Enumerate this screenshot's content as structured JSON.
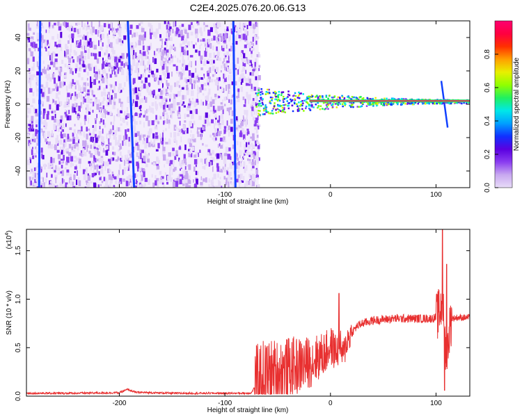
{
  "title": "C2E4.2025.076.20.06.G13",
  "chart_data": [
    {
      "type": "heatmap",
      "xlabel": "Height of straight line (km)",
      "ylabel": "Frequency (Hz)",
      "xlim": [
        -288,
        132
      ],
      "ylim": [
        -50,
        50
      ],
      "x_ticks": [
        -200,
        -100,
        0,
        100
      ],
      "x_tick_labels": [
        "-200",
        "-100",
        "0",
        "100"
      ],
      "y_ticks": [
        -40,
        -20,
        0,
        20,
        40
      ],
      "y_tick_labels": [
        "-40",
        "-20",
        "0",
        "20",
        "40"
      ],
      "colorbar": {
        "label": "Normalized spectral amplitude",
        "range": [
          0,
          1
        ],
        "ticks": [
          0,
          0.2,
          0.4,
          0.6,
          0.8
        ],
        "tick_labels": [
          "0.0",
          "0.2",
          "0.4",
          "0.6",
          "0.8"
        ],
        "colors": [
          "#e8dcf8",
          "#c8a8f0",
          "#8a3cf0",
          "#5a00e0",
          "#1030ff",
          "#00a0ff",
          "#00e8e8",
          "#20f060",
          "#90ff00",
          "#e8f000",
          "#ffa000",
          "#ff3000",
          "#ff0040",
          "#ff0070"
        ]
      },
      "features": {
        "noise_region_x": [
          -288,
          -68
        ],
        "signal_line_frequency": 2,
        "signal_start_x": -72,
        "streak_lines": [
          {
            "x_top": -192,
            "x_bottom": -186
          },
          {
            "x_top": -92,
            "x_bottom": -90
          },
          {
            "x_top": -275,
            "x_bottom": -276
          },
          {
            "x_top": 105,
            "x_bottom": 111
          }
        ]
      }
    },
    {
      "type": "line",
      "xlabel": "Height of straight line (km)",
      "ylabel": "SNR (10 * v/v)",
      "y_multiplier": "(x10",
      "y_multiplier_exp": "4",
      "xlim": [
        -288,
        132
      ],
      "ylim": [
        0,
        17200
      ],
      "x_ticks": [
        -200,
        -100,
        0,
        100
      ],
      "x_tick_labels": [
        "-200",
        "-100",
        "0",
        "100"
      ],
      "y_ticks": [
        0,
        5000,
        10000,
        15000
      ],
      "y_tick_labels": [
        "0.0",
        "0.5",
        "1.0",
        "1.5"
      ],
      "series": [
        {
          "color": "#e83030",
          "x": [
            -288,
            -250,
            -200,
            -192,
            -185,
            -150,
            -100,
            -80,
            -75,
            -72,
            -65,
            -55,
            -45,
            -35,
            -25,
            -18,
            -12,
            -5,
            0,
            5,
            10,
            12,
            15,
            20,
            25,
            30,
            40,
            50,
            60,
            70,
            80,
            90,
            95,
            100,
            103,
            106,
            108,
            110,
            112,
            115,
            120,
            125,
            132
          ],
          "y": [
            300,
            300,
            350,
            700,
            400,
            300,
            300,
            300,
            320,
            900,
            1800,
            2200,
            2600,
            3000,
            3300,
            3600,
            4000,
            4400,
            5200,
            4600,
            5000,
            4000,
            5600,
            6500,
            7200,
            7500,
            7800,
            7900,
            8000,
            8000,
            8000,
            8000,
            8000,
            8100,
            8600,
            9500,
            7000,
            3000,
            6500,
            8000,
            8100,
            8100,
            8100
          ]
        }
      ],
      "features": {
        "spikes": [
          {
            "x": 8,
            "y": 10600
          },
          {
            "x": 106,
            "y": 17200
          },
          {
            "x": 108,
            "y": 600
          },
          {
            "x": 110,
            "y": 13600
          }
        ]
      }
    }
  ]
}
